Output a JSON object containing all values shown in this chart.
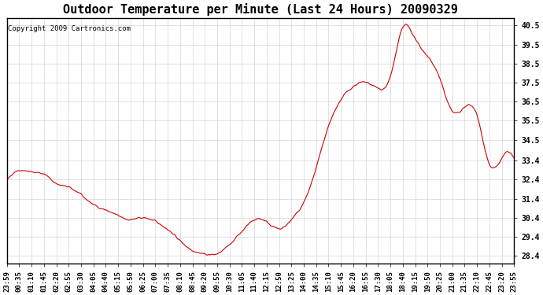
{
  "title": "Outdoor Temperature per Minute (Last 24 Hours) 20090329",
  "copyright": "Copyright 2009 Cartronics.com",
  "line_color": "#cc0000",
  "bg_color": "#ffffff",
  "plot_bg_color": "#ffffff",
  "grid_color": "#cccccc",
  "yticks": [
    28.4,
    29.4,
    30.4,
    31.4,
    32.4,
    33.4,
    34.5,
    35.5,
    36.5,
    37.5,
    38.5,
    39.5,
    40.5
  ],
  "ylim": [
    28.0,
    40.9
  ],
  "xtick_labels": [
    "23:59",
    "00:35",
    "01:10",
    "01:45",
    "02:20",
    "02:55",
    "03:30",
    "04:05",
    "04:40",
    "05:15",
    "05:50",
    "06:25",
    "07:00",
    "07:35",
    "08:10",
    "08:45",
    "09:20",
    "09:55",
    "10:30",
    "11:05",
    "11:40",
    "12:15",
    "12:50",
    "13:25",
    "14:00",
    "14:35",
    "15:10",
    "15:45",
    "16:20",
    "16:55",
    "17:30",
    "18:05",
    "18:40",
    "19:15",
    "19:50",
    "20:25",
    "21:00",
    "21:35",
    "22:10",
    "22:45",
    "23:20",
    "23:55"
  ],
  "key_times": [
    0,
    35,
    70,
    105,
    140,
    175,
    210,
    245,
    280,
    315,
    350,
    385,
    420,
    455,
    490,
    525,
    560,
    595,
    630,
    665,
    700,
    735,
    770,
    805,
    840,
    875,
    910,
    945,
    980,
    1015,
    1050,
    1085,
    1120,
    1155,
    1190,
    1225,
    1260,
    1295,
    1330,
    1365,
    1400,
    1435
  ],
  "key_temps": [
    32.3,
    32.9,
    32.8,
    32.7,
    32.2,
    32.0,
    31.6,
    31.1,
    30.8,
    30.5,
    30.3,
    30.4,
    30.2,
    29.8,
    29.2,
    28.7,
    28.5,
    28.5,
    29.0,
    29.7,
    30.3,
    30.2,
    29.8,
    30.3,
    31.2,
    33.0,
    35.2,
    36.6,
    37.3,
    37.5,
    37.2,
    37.8,
    40.4,
    39.8,
    38.9,
    37.7,
    36.0,
    36.2,
    35.8,
    33.2,
    33.5,
    33.4
  ]
}
